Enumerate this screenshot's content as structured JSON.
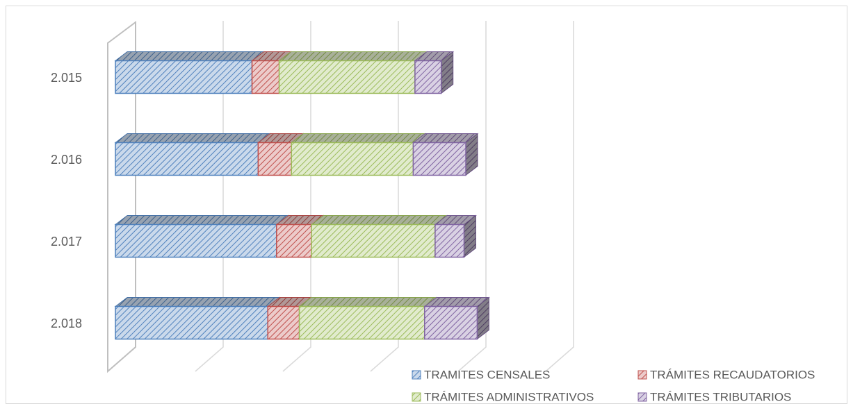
{
  "chart_data": {
    "type": "bar3d_stacked_horizontal",
    "categories": [
      "2.015",
      "2.016",
      "2.017",
      "2.018"
    ],
    "series": [
      {
        "name": "TRAMITES CENSALES",
        "color": "#4f81bd",
        "values": [
          1.56,
          1.63,
          1.84,
          1.74
        ]
      },
      {
        "name": "TRÁMITES RECAUDATORIOS",
        "color": "#c0504d",
        "values": [
          0.31,
          0.38,
          0.4,
          0.36
        ]
      },
      {
        "name": "TRÁMITES ADMINISTRATIVOS",
        "color": "#9bbb59",
        "values": [
          1.55,
          1.39,
          1.41,
          1.43
        ]
      },
      {
        "name": "TRÁMITES TRIBUTARIOS",
        "color": "#8064a2",
        "values": [
          0.3,
          0.6,
          0.33,
          0.6
        ]
      }
    ],
    "xlim": [
      0,
      5
    ],
    "xticks": [
      0,
      1,
      2,
      3,
      4,
      5
    ],
    "grid": true
  }
}
